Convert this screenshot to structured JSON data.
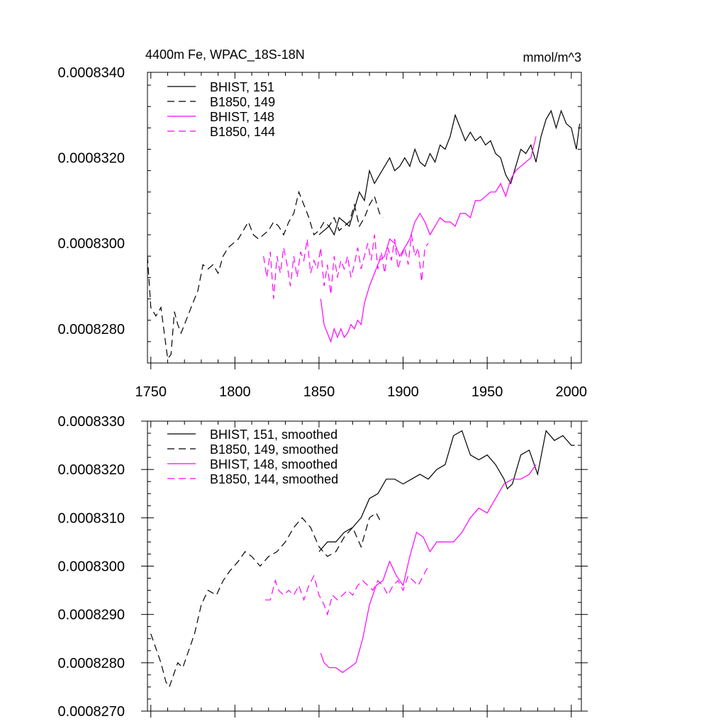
{
  "colors": {
    "black": "#000000",
    "magenta": "#ff00ff"
  },
  "chart_data": [
    {
      "type": "line",
      "title_left": "4400m Fe, WPAC_18S-18N",
      "title_right": "mmol/m^3",
      "xlim": [
        1748,
        2006
      ],
      "ylim": [
        0.0008272,
        0.000834
      ],
      "xticks": [
        "1750",
        "1800",
        "1850",
        "1900",
        "1950",
        "2000"
      ],
      "yticks": [
        "0.0008280",
        "0.0008300",
        "0.0008320",
        "0.0008340"
      ],
      "series": [
        {
          "name": "BHIST, 151",
          "color": "#000000",
          "dash": "solid",
          "x": [
            1850,
            1853,
            1856,
            1859,
            1862,
            1865,
            1868,
            1871,
            1874,
            1877,
            1880,
            1883,
            1886,
            1889,
            1892,
            1895,
            1898,
            1901,
            1904,
            1907,
            1910,
            1913,
            1916,
            1919,
            1922,
            1925,
            1928,
            1931,
            1934,
            1937,
            1940,
            1943,
            1946,
            1949,
            1952,
            1955,
            1958,
            1961,
            1964,
            1967,
            1970,
            1973,
            1976,
            1979,
            1982,
            1985,
            1988,
            1991,
            1994,
            1997,
            2000,
            2003,
            2005
          ],
          "y": [
            0.0008302,
            0.0008303,
            0.0008304,
            0.0008302,
            0.0008306,
            0.0008305,
            0.0008304,
            0.0008308,
            0.0008312,
            0.000831,
            0.0008317,
            0.0008314,
            0.0008316,
            0.0008318,
            0.000832,
            0.0008317,
            0.0008318,
            0.000832,
            0.0008318,
            0.0008322,
            0.0008319,
            0.0008318,
            0.0008321,
            0.0008319,
            0.0008323,
            0.0008322,
            0.0008325,
            0.000833,
            0.0008327,
            0.0008324,
            0.0008326,
            0.0008324,
            0.0008325,
            0.0008323,
            0.0008324,
            0.0008321,
            0.000832,
            0.0008316,
            0.0008314,
            0.0008318,
            0.0008322,
            0.0008321,
            0.0008323,
            0.0008319,
            0.0008325,
            0.0008329,
            0.0008331,
            0.0008327,
            0.0008331,
            0.0008328,
            0.0008327,
            0.0008322,
            0.0008328
          ]
        },
        {
          "name": "B1850, 149",
          "color": "#000000",
          "dash": "dashed",
          "x": [
            1748,
            1750,
            1753,
            1756,
            1758,
            1760,
            1762,
            1764,
            1766,
            1768,
            1770,
            1772,
            1775,
            1778,
            1781,
            1784,
            1787,
            1790,
            1793,
            1796,
            1799,
            1802,
            1805,
            1808,
            1811,
            1814,
            1817,
            1820,
            1823,
            1826,
            1829,
            1832,
            1835,
            1838,
            1841,
            1844,
            1847,
            1850,
            1853,
            1856,
            1859,
            1862,
            1865,
            1868,
            1871,
            1874,
            1877,
            1880,
            1883,
            1886,
            1888
          ],
          "y": [
            0.0008297,
            0.0008285,
            0.0008283,
            0.0008285,
            0.0008279,
            0.0008273,
            0.0008274,
            0.0008284,
            0.0008281,
            0.0008279,
            0.0008281,
            0.0008283,
            0.0008286,
            0.0008289,
            0.0008295,
            0.0008294,
            0.0008295,
            0.0008293,
            0.0008297,
            0.0008299,
            0.00083,
            0.0008301,
            0.0008303,
            0.0008305,
            0.0008302,
            0.0008301,
            0.0008302,
            0.0008303,
            0.0008305,
            0.0008304,
            0.0008302,
            0.0008305,
            0.0008307,
            0.0008312,
            0.0008309,
            0.0008306,
            0.0008302,
            0.0008303,
            0.0008305,
            0.0008304,
            0.0008306,
            0.0008303,
            0.0008304,
            0.0008305,
            0.0008309,
            0.0008304,
            0.0008306,
            0.0008309,
            0.0008311,
            0.0008307,
            0.0008306
          ]
        },
        {
          "name": "BHIST, 148",
          "color": "#ff00ff",
          "dash": "solid",
          "x": [
            1851,
            1853,
            1855,
            1857,
            1859,
            1861,
            1863,
            1865,
            1867,
            1869,
            1871,
            1873,
            1875,
            1877,
            1880,
            1883,
            1886,
            1889,
            1892,
            1895,
            1898,
            1901,
            1904,
            1907,
            1910,
            1913,
            1916,
            1919,
            1922,
            1925,
            1928,
            1931,
            1934,
            1937,
            1940,
            1943,
            1946,
            1949,
            1952,
            1955,
            1958,
            1961,
            1964,
            1967,
            1970,
            1973,
            1976,
            1979
          ],
          "y": [
            0.0008287,
            0.0008281,
            0.0008279,
            0.0008277,
            0.000828,
            0.0008278,
            0.000828,
            0.0008278,
            0.0008279,
            0.0008281,
            0.000828,
            0.0008282,
            0.0008281,
            0.0008286,
            0.000829,
            0.0008293,
            0.0008296,
            0.0008297,
            0.0008301,
            0.00083,
            0.0008297,
            0.0008299,
            0.0008301,
            0.0008305,
            0.0008307,
            0.0008305,
            0.0008302,
            0.0008304,
            0.0008306,
            0.0008305,
            0.0008305,
            0.0008304,
            0.0008307,
            0.0008307,
            0.0008306,
            0.000831,
            0.000831,
            0.0008311,
            0.0008312,
            0.0008312,
            0.0008314,
            0.0008311,
            0.0008315,
            0.0008317,
            0.0008318,
            0.0008319,
            0.000832,
            0.0008325
          ]
        },
        {
          "name": "B1850, 144",
          "color": "#ff00ff",
          "dash": "dashed",
          "x": [
            1817,
            1819,
            1821,
            1823,
            1825,
            1827,
            1829,
            1831,
            1833,
            1835,
            1837,
            1839,
            1841,
            1843,
            1845,
            1847,
            1849,
            1851,
            1853,
            1855,
            1857,
            1859,
            1861,
            1863,
            1865,
            1867,
            1869,
            1871,
            1873,
            1875,
            1877,
            1879,
            1881,
            1883,
            1885,
            1887,
            1889,
            1891,
            1893,
            1895,
            1897,
            1899,
            1901,
            1903,
            1905,
            1907,
            1909,
            1911,
            1913,
            1915
          ],
          "y": [
            0.0008297,
            0.0008292,
            0.0008298,
            0.0008287,
            0.0008297,
            0.0008293,
            0.0008299,
            0.0008295,
            0.000829,
            0.0008297,
            0.0008292,
            0.0008298,
            0.0008296,
            0.0008301,
            0.0008293,
            0.0008296,
            0.0008294,
            0.0008299,
            0.000829,
            0.0008295,
            0.0008288,
            0.0008297,
            0.0008292,
            0.0008296,
            0.0008294,
            0.0008297,
            0.0008292,
            0.0008295,
            0.0008299,
            0.0008294,
            0.0008297,
            0.00083,
            0.0008296,
            0.0008302,
            0.0008294,
            0.0008298,
            0.0008293,
            0.0008299,
            0.0008296,
            0.0008301,
            0.0008294,
            0.0008297,
            0.0008299,
            0.0008295,
            0.0008302,
            0.0008297,
            0.0008299,
            0.0008291,
            0.0008299,
            0.00083
          ]
        }
      ]
    },
    {
      "type": "line",
      "xlim": [
        1748,
        2006
      ],
      "ylim": [
        0.000827,
        0.000833
      ],
      "yticks": [
        "0.0008270",
        "0.0008280",
        "0.0008290",
        "0.0008300",
        "0.0008310",
        "0.0008320",
        "0.0008330"
      ],
      "series": [
        {
          "name": "BHIST, 151, smoothed",
          "color": "#000000",
          "dash": "solid",
          "x": [
            1850,
            1855,
            1860,
            1865,
            1870,
            1875,
            1880,
            1885,
            1890,
            1895,
            1900,
            1905,
            1910,
            1915,
            1920,
            1925,
            1930,
            1935,
            1940,
            1945,
            1950,
            1955,
            1960,
            1962,
            1965,
            1970,
            1975,
            1980,
            1985,
            1990,
            1995,
            2000,
            2002
          ],
          "y": [
            0.0008303,
            0.0008305,
            0.0008305,
            0.0008307,
            0.0008308,
            0.000831,
            0.0008314,
            0.0008315,
            0.0008318,
            0.0008318,
            0.0008317,
            0.0008318,
            0.0008319,
            0.0008318,
            0.000832,
            0.0008321,
            0.0008327,
            0.0008328,
            0.0008323,
            0.0008322,
            0.0008323,
            0.0008321,
            0.0008318,
            0.0008316,
            0.0008317,
            0.0008323,
            0.0008324,
            0.0008319,
            0.0008328,
            0.0008326,
            0.0008327,
            0.0008325,
            0.0008325
          ]
        },
        {
          "name": "B1850, 149, smoothed",
          "color": "#000000",
          "dash": "dashed",
          "x": [
            1750,
            1753,
            1756,
            1759,
            1761,
            1763,
            1766,
            1769,
            1772,
            1776,
            1780,
            1784,
            1789,
            1793,
            1797,
            1802,
            1806,
            1810,
            1815,
            1820,
            1825,
            1830,
            1835,
            1840,
            1845,
            1850,
            1855,
            1860,
            1865,
            1870,
            1875,
            1880,
            1884,
            1887
          ],
          "y": [
            0.0008286,
            0.0008283,
            0.000828,
            0.0008276,
            0.0008275,
            0.0008277,
            0.000828,
            0.0008279,
            0.0008282,
            0.0008286,
            0.0008292,
            0.0008295,
            0.0008294,
            0.0008297,
            0.0008299,
            0.0008301,
            0.0008303,
            0.0008302,
            0.00083,
            0.0008302,
            0.0008303,
            0.0008305,
            0.0008308,
            0.000831,
            0.0008308,
            0.0008304,
            0.0008302,
            0.0008303,
            0.0008306,
            0.0008308,
            0.0008304,
            0.000831,
            0.0008311,
            0.0008309
          ]
        },
        {
          "name": "BHIST, 148, smoothed",
          "color": "#ff00ff",
          "dash": "solid",
          "x": [
            1851,
            1853,
            1856,
            1860,
            1864,
            1868,
            1872,
            1876,
            1880,
            1884,
            1888,
            1892,
            1896,
            1900,
            1904,
            1908,
            1912,
            1916,
            1920,
            1925,
            1930,
            1935,
            1940,
            1945,
            1950,
            1955,
            1960,
            1965,
            1970,
            1975,
            1979
          ],
          "y": [
            0.0008282,
            0.000828,
            0.0008279,
            0.0008279,
            0.0008278,
            0.0008279,
            0.000828,
            0.0008285,
            0.0008292,
            0.0008296,
            0.0008297,
            0.0008301,
            0.0008298,
            0.0008296,
            0.0008302,
            0.0008307,
            0.0008306,
            0.0008303,
            0.0008305,
            0.0008305,
            0.0008305,
            0.0008307,
            0.000831,
            0.0008312,
            0.0008311,
            0.0008314,
            0.0008317,
            0.0008318,
            0.0008318,
            0.0008319,
            0.0008321
          ]
        },
        {
          "name": "B1850, 144, smoothed",
          "color": "#ff00ff",
          "dash": "dashed",
          "x": [
            1818,
            1821,
            1824,
            1826,
            1829,
            1832,
            1835,
            1838,
            1841,
            1844,
            1847,
            1850,
            1853,
            1855,
            1858,
            1861,
            1864,
            1867,
            1870,
            1873,
            1876,
            1879,
            1882,
            1885,
            1888,
            1891,
            1894,
            1897,
            1900,
            1903,
            1906,
            1909,
            1912,
            1915
          ],
          "y": [
            0.0008293,
            0.0008293,
            0.0008297,
            0.0008295,
            0.0008294,
            0.0008295,
            0.0008294,
            0.0008296,
            0.0008293,
            0.0008296,
            0.0008298,
            0.0008294,
            0.0008292,
            0.000829,
            0.0008294,
            0.0008293,
            0.0008294,
            0.0008295,
            0.0008294,
            0.0008296,
            0.0008297,
            0.0008296,
            0.0008295,
            0.0008297,
            0.0008296,
            0.0008294,
            0.0008296,
            0.0008297,
            0.0008295,
            0.0008298,
            0.0008297,
            0.0008296,
            0.0008298,
            0.00083
          ]
        }
      ]
    }
  ]
}
